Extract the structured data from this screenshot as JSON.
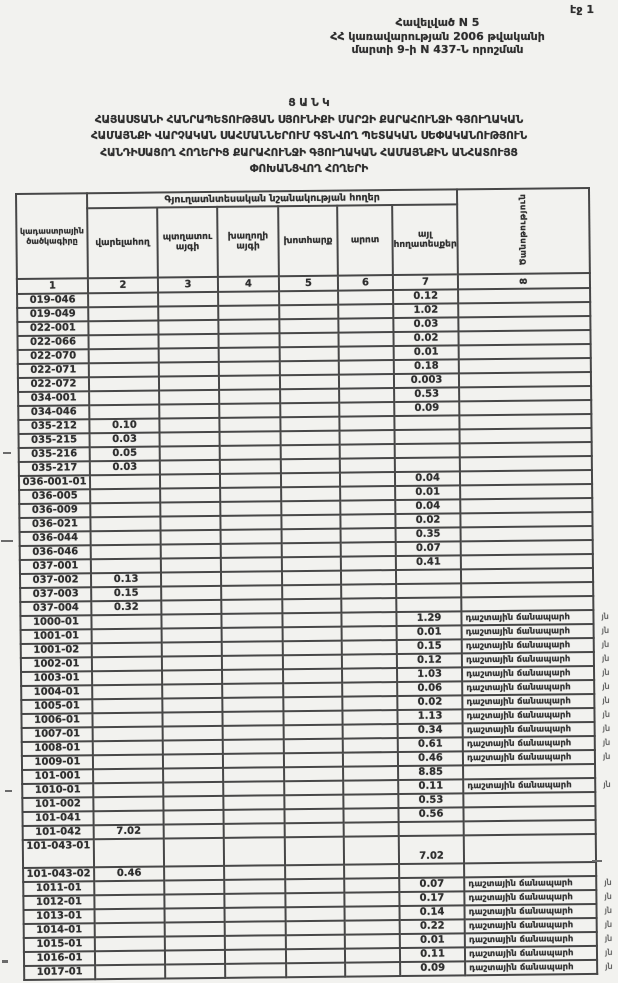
{
  "page": {
    "number_label": "էջ 1"
  },
  "header": {
    "annex": "Հավելված N 5",
    "decree_line1": "ՀՀ կառավարության 2006 թվականի",
    "decree_line2": "մարտի 9-ի N 437-Ն որոշման"
  },
  "title": {
    "line1": "Ց Ա Ն Կ",
    "line2": "ՀԱՅԱՍՏԱՆԻ ՀԱՆՐԱՊԵՏՈՒԹՅԱՆ ՍՅՈՒՆԻՔԻ ՄԱՐԶԻ ՔԱՐԱՀՈՒՆՋԻ ԳՅՈՒՂԱԿԱՆ",
    "line3": "ՀԱՄԱՅՆՔԻ ՎԱՐՉԱԿԱՆ ՍԱՀՄԱՆՆԵՐՈՒՄ ԳՏՆՎՈՂ ՊԵՏԱԿԱՆ ՍԵՓԱԿԱՆՈՒԹՅՈՒՆ",
    "line4": "ՀԱՆԴԻՍԱՑՈՂ ՀՈՂԵՐԻՑ ՔԱՐԱՀՈՒՆՋԻ ԳՅՈՒՂԱԿԱՆ ՀԱՄԱՅՆՔԻՆ ԱՆՀԱՏՈՒՅՑ",
    "line5": "ՓՈԽԱՆՑՎՈՂ ՀՈՂԵՐԻ"
  },
  "table": {
    "col1_header_line1": "կադաստրային",
    "col1_header_line2": "ծածկագիրը",
    "group_header": "Գյուղատնտեսական նշանակության հողեր",
    "columns": [
      "վարելահող",
      "պտղատու այգի",
      "խաղողի այգի",
      "խոտհարք",
      "արոտ",
      "այլ հողատեսքեր"
    ],
    "notes_header": "Ծանոթություն",
    "column_numbers": [
      "1",
      "2",
      "3",
      "4",
      "5",
      "6",
      "7",
      "8"
    ],
    "margin_mark": "յն",
    "rows": [
      {
        "code": "019-046",
        "other": "0.12"
      },
      {
        "code": "019-049",
        "other": "1.02"
      },
      {
        "code": "022-001",
        "other": "0.03"
      },
      {
        "code": "022-066",
        "other": "0.02"
      },
      {
        "code": "022-070",
        "other": "0.01"
      },
      {
        "code": "022-071",
        "other": "0.18"
      },
      {
        "code": "022-072",
        "other": "0.003"
      },
      {
        "code": "034-001",
        "other": "0.53"
      },
      {
        "code": "034-046",
        "other": "0.09"
      },
      {
        "code": "035-212",
        "arable": "0.10"
      },
      {
        "code": "035-215",
        "arable": "0.03"
      },
      {
        "code": "035-216",
        "arable": "0.05"
      },
      {
        "code": "035-217",
        "arable": "0.03"
      },
      {
        "code": "036-001-01",
        "other": "0.04"
      },
      {
        "code": "036-005",
        "other": "0.01"
      },
      {
        "code": "036-009",
        "other": "0.04"
      },
      {
        "code": "036-021",
        "other": "0.02"
      },
      {
        "code": "036-044",
        "other": "0.35"
      },
      {
        "code": "036-046",
        "other": "0.07"
      },
      {
        "code": "037-001",
        "other": "0.41"
      },
      {
        "code": "037-002",
        "arable": "0.13"
      },
      {
        "code": "037-003",
        "arable": "0.15"
      },
      {
        "code": "037-004",
        "arable": "0.32"
      },
      {
        "code": "1000-01",
        "other": "1.29",
        "note": "դաշտային ճանապարհ",
        "mark": true
      },
      {
        "code": "1001-01",
        "other": "0.01",
        "note": "դաշտային ճանապարհ",
        "mark": true
      },
      {
        "code": "1001-02",
        "other": "0.15",
        "note": "դաշտային ճանապարհ",
        "mark": true
      },
      {
        "code": "1002-01",
        "other": "0.12",
        "note": "դաշտային ճանապարհ",
        "mark": true
      },
      {
        "code": "1003-01",
        "other": "1.03",
        "note": "դաշտային ճանապարհ",
        "mark": true
      },
      {
        "code": "1004-01",
        "other": "0.06",
        "note": "դաշտային ճանապարհ",
        "mark": true
      },
      {
        "code": "1005-01",
        "other": "0.02",
        "note": "դաշտային ճանապարհ",
        "mark": true
      },
      {
        "code": "1006-01",
        "other": "1.13",
        "note": "դաշտային ճանապարհ",
        "mark": true
      },
      {
        "code": "1007-01",
        "other": "0.34",
        "note": "դաշտային ճանապարհ",
        "mark": true
      },
      {
        "code": "1008-01",
        "other": "0.61",
        "note": "դաշտային ճանապարհ",
        "mark": true
      },
      {
        "code": "1009-01",
        "other": "0.46",
        "note": "դաշտային ճանապարհ",
        "mark": true
      },
      {
        "code": "101-001",
        "other": "8.85"
      },
      {
        "code": "1010-01",
        "other": "0.11",
        "note": "դաշտային ճանապարհ",
        "mark": true
      },
      {
        "code": "101-002",
        "other": "0.53"
      },
      {
        "code": "101-041",
        "other": "0.56"
      },
      {
        "code": "101-042",
        "arable": "7.02"
      },
      {
        "code": "101-043-01",
        "other": "7.02",
        "tall": true
      },
      {
        "code": "101-043-02",
        "arable": "0.46"
      },
      {
        "code": "1011-01",
        "other": "0.07",
        "note": "դաշտային ճանապարհ",
        "mark": true
      },
      {
        "code": "1012-01",
        "other": "0.17",
        "note": "դաշտային ճանապարհ",
        "mark": true
      },
      {
        "code": "1013-01",
        "other": "0.14",
        "note": "դաշտային ճանապարհ",
        "mark": true
      },
      {
        "code": "1014-01",
        "other": "0.22",
        "note": "դաշտային ճանապարհ",
        "mark": true
      },
      {
        "code": "1015-01",
        "other": "0.01",
        "note": "դաշտային ճանապարհ",
        "mark": true
      },
      {
        "code": "1016-01",
        "other": "0.11",
        "note": "դաշտային ճանապարհ",
        "mark": true
      },
      {
        "code": "1017-01",
        "other": "0.09",
        "note": "դաշտային ճանապարհ",
        "mark": true
      }
    ]
  }
}
